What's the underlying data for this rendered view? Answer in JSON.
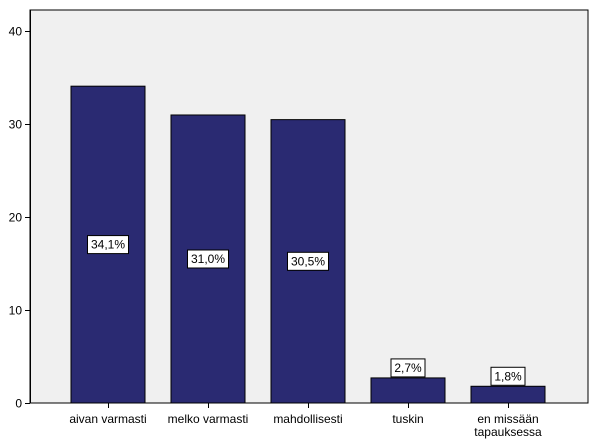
{
  "chart_data": {
    "type": "bar",
    "categories": [
      [
        "aivan varmasti"
      ],
      [
        "melko varmasti"
      ],
      [
        "mahdollisesti"
      ],
      [
        "tuskin"
      ],
      [
        "en missään",
        "tapauksessa"
      ]
    ],
    "values": [
      34.1,
      31.0,
      30.5,
      2.7,
      1.8
    ],
    "data_labels": [
      "34,1%",
      "31,0%",
      "30,5%",
      "2,7%",
      "1,8%"
    ],
    "y_ticks": [
      0,
      10,
      20,
      30,
      40
    ],
    "ylim": [
      0,
      42.3
    ],
    "title": "",
    "xlabel": "",
    "ylabel": "",
    "grid": false,
    "colors": {
      "bar": "#2a2a72",
      "bar_edge": "#000000",
      "plot_bg": "#f0f0f0",
      "page_bg": "#ffffff",
      "axis": "#000000",
      "label_box_bg": "#ffffff"
    }
  }
}
